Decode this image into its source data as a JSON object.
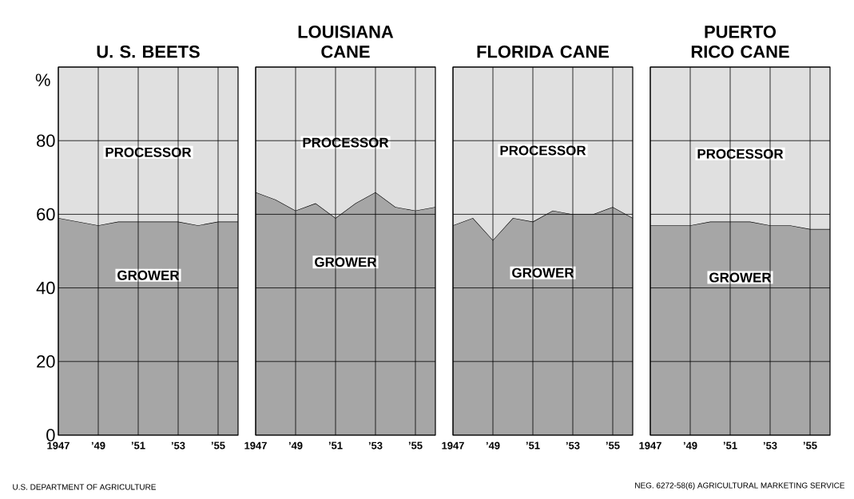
{
  "chart_data": [
    {
      "type": "area",
      "title": "U. S. BEETS",
      "ylabel": "%",
      "stacked": true,
      "grid": true,
      "xlim": [
        1947,
        1956
      ],
      "ylim": [
        0,
        100
      ],
      "xticks": [
        1947,
        {
          "value": 1949,
          "label": "’49"
        },
        {
          "value": 1951,
          "label": "’51"
        },
        {
          "value": 1953,
          "label": "’53"
        },
        {
          "value": 1955,
          "label": "’55"
        }
      ],
      "yticks": [
        0,
        20,
        40,
        60,
        80
      ],
      "x": [
        1947,
        1948,
        1949,
        1950,
        1951,
        1952,
        1953,
        1954,
        1955,
        1956
      ],
      "series": [
        {
          "name": "GROWER",
          "color": "#a6a6a6",
          "values": [
            59,
            58,
            57,
            58,
            58,
            58,
            58,
            57,
            58,
            58
          ]
        },
        {
          "name": "PROCESSOR",
          "color": "#e0e0e0",
          "values": [
            41,
            42,
            43,
            42,
            42,
            42,
            42,
            43,
            42,
            42
          ]
        }
      ],
      "annotations": [
        "U.S. DEPARTMENT OF AGRICULTURE"
      ]
    },
    {
      "type": "area",
      "title": "LOUISIANA CANE",
      "stacked": true,
      "grid": true,
      "tick_labels": "x",
      "xlim": [
        1947,
        1956
      ],
      "ylim": [
        0,
        100
      ],
      "xticks": [
        1947,
        {
          "value": 1949,
          "label": "’49"
        },
        {
          "value": 1951,
          "label": "’51"
        },
        {
          "value": 1953,
          "label": "’53"
        },
        {
          "value": 1955,
          "label": "’55"
        }
      ],
      "yticks": [
        0,
        20,
        40,
        60,
        80
      ],
      "x": [
        1947,
        1948,
        1949,
        1950,
        1951,
        1952,
        1953,
        1954,
        1955,
        1956
      ],
      "series": [
        {
          "name": "GROWER",
          "color": "#a6a6a6",
          "values": [
            66,
            64,
            61,
            63,
            59,
            63,
            66,
            62,
            61,
            62
          ]
        },
        {
          "name": "PROCESSOR",
          "color": "#e0e0e0",
          "values": [
            34,
            36,
            39,
            37,
            41,
            37,
            34,
            38,
            39,
            38
          ]
        }
      ]
    },
    {
      "type": "area",
      "title": "FLORIDA CANE",
      "stacked": true,
      "grid": true,
      "tick_labels": "x",
      "xlim": [
        1947,
        1956
      ],
      "ylim": [
        0,
        100
      ],
      "xticks": [
        1947,
        {
          "value": 1949,
          "label": "’49"
        },
        {
          "value": 1951,
          "label": "’51"
        },
        {
          "value": 1953,
          "label": "’53"
        },
        {
          "value": 1955,
          "label": "’55"
        }
      ],
      "yticks": [
        0,
        20,
        40,
        60,
        80
      ],
      "x": [
        1947,
        1948,
        1949,
        1950,
        1951,
        1952,
        1953,
        1954,
        1955,
        1956
      ],
      "series": [
        {
          "name": "GROWER",
          "color": "#a6a6a6",
          "values": [
            57,
            59,
            53,
            59,
            58,
            61,
            60,
            60,
            62,
            59
          ]
        },
        {
          "name": "PROCESSOR",
          "color": "#e0e0e0",
          "values": [
            43,
            41,
            47,
            41,
            42,
            39,
            40,
            40,
            38,
            41
          ]
        }
      ]
    },
    {
      "type": "area",
      "title": "PUERTO RICO CANE",
      "stacked": true,
      "grid": true,
      "tick_labels": "x",
      "xlim": [
        1947,
        1956
      ],
      "ylim": [
        0,
        100
      ],
      "xticks": [
        1947,
        {
          "value": 1949,
          "label": "’49"
        },
        {
          "value": 1951,
          "label": "’51"
        },
        {
          "value": 1953,
          "label": "’53"
        },
        {
          "value": 1955,
          "label": "’55"
        }
      ],
      "yticks": [
        0,
        20,
        40,
        60,
        80
      ],
      "x": [
        1947,
        1948,
        1949,
        1950,
        1951,
        1952,
        1953,
        1954,
        1955,
        1956
      ],
      "series": [
        {
          "name": "GROWER",
          "color": "#a6a6a6",
          "values": [
            57,
            57,
            57,
            58,
            58,
            58,
            57,
            57,
            56,
            56
          ]
        },
        {
          "name": "PROCESSOR",
          "color": "#e0e0e0",
          "values": [
            43,
            43,
            43,
            42,
            42,
            42,
            43,
            43,
            44,
            44
          ]
        }
      ],
      "annotations": [
        "NEG. 6272-58(6)  AGRICULTURAL MARKETING SERVICE"
      ]
    }
  ]
}
